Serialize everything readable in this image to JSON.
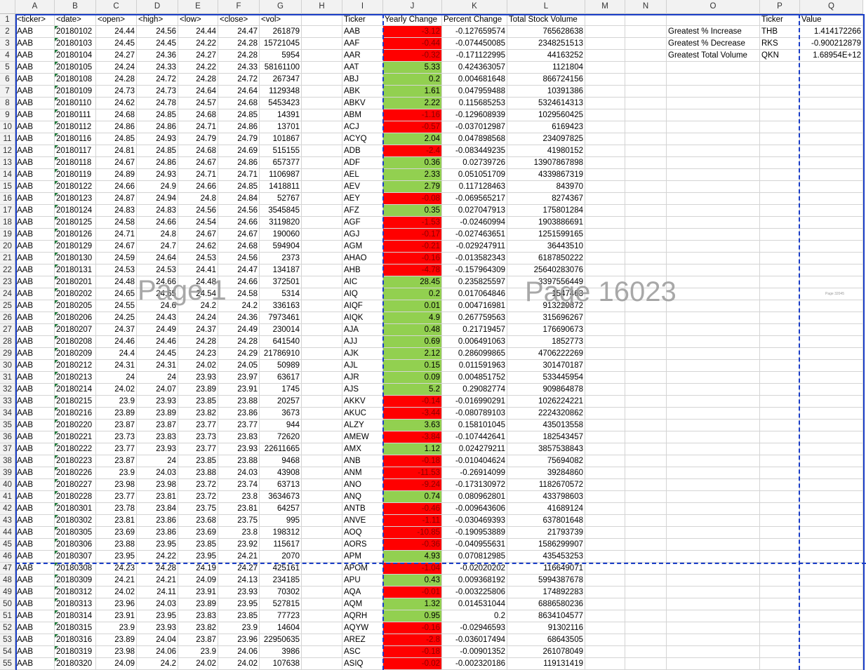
{
  "columns": [
    "A",
    "B",
    "C",
    "D",
    "E",
    "F",
    "G",
    "H",
    "I",
    "J",
    "K",
    "L",
    "M",
    "N",
    "O",
    "P",
    "Q"
  ],
  "header_row": {
    "A": "<ticker>",
    "B": "<date>",
    "C": "<open>",
    "D": "<high>",
    "E": "<low>",
    "F": "<close>",
    "G": "<vol>",
    "I": "Ticker",
    "J": "Yearly Change",
    "K": "Percent Change",
    "L": "Total Stock Volume",
    "P": "Ticker",
    "Q": "Value"
  },
  "raw_rows": [
    [
      "AAB",
      "20180102",
      "24.44",
      "24.56",
      "24.44",
      "24.47",
      "261879"
    ],
    [
      "AAB",
      "20180103",
      "24.45",
      "24.45",
      "24.22",
      "24.28",
      "15721045"
    ],
    [
      "AAB",
      "20180104",
      "24.27",
      "24.36",
      "24.27",
      "24.28",
      "5954"
    ],
    [
      "AAB",
      "20180105",
      "24.24",
      "24.33",
      "24.22",
      "24.33",
      "58161100"
    ],
    [
      "AAB",
      "20180108",
      "24.28",
      "24.72",
      "24.28",
      "24.72",
      "267347"
    ],
    [
      "AAB",
      "20180109",
      "24.73",
      "24.73",
      "24.64",
      "24.64",
      "1129348"
    ],
    [
      "AAB",
      "20180110",
      "24.62",
      "24.78",
      "24.57",
      "24.68",
      "5453423"
    ],
    [
      "AAB",
      "20180111",
      "24.68",
      "24.85",
      "24.68",
      "24.85",
      "14391"
    ],
    [
      "AAB",
      "20180112",
      "24.86",
      "24.86",
      "24.71",
      "24.86",
      "13701"
    ],
    [
      "AAB",
      "20180116",
      "24.85",
      "24.93",
      "24.79",
      "24.79",
      "101867"
    ],
    [
      "AAB",
      "20180117",
      "24.81",
      "24.85",
      "24.68",
      "24.69",
      "515155"
    ],
    [
      "AAB",
      "20180118",
      "24.67",
      "24.86",
      "24.67",
      "24.86",
      "657377"
    ],
    [
      "AAB",
      "20180119",
      "24.89",
      "24.93",
      "24.71",
      "24.71",
      "1106987"
    ],
    [
      "AAB",
      "20180122",
      "24.66",
      "24.9",
      "24.66",
      "24.85",
      "1418811"
    ],
    [
      "AAB",
      "20180123",
      "24.87",
      "24.94",
      "24.8",
      "24.84",
      "52767"
    ],
    [
      "AAB",
      "20180124",
      "24.83",
      "24.83",
      "24.56",
      "24.56",
      "3545845"
    ],
    [
      "AAB",
      "20180125",
      "24.58",
      "24.66",
      "24.54",
      "24.66",
      "3119820"
    ],
    [
      "AAB",
      "20180126",
      "24.71",
      "24.8",
      "24.67",
      "24.67",
      "190060"
    ],
    [
      "AAB",
      "20180129",
      "24.67",
      "24.7",
      "24.62",
      "24.68",
      "594904"
    ],
    [
      "AAB",
      "20180130",
      "24.59",
      "24.64",
      "24.53",
      "24.56",
      "2373"
    ],
    [
      "AAB",
      "20180131",
      "24.53",
      "24.53",
      "24.41",
      "24.47",
      "134187"
    ],
    [
      "AAB",
      "20180201",
      "24.48",
      "24.66",
      "24.48",
      "24.66",
      "372501"
    ],
    [
      "AAB",
      "20180202",
      "24.65",
      "24.65",
      "24.54",
      "24.58",
      "5314"
    ],
    [
      "AAB",
      "20180205",
      "24.55",
      "24.6",
      "24.2",
      "24.2",
      "336163"
    ],
    [
      "AAB",
      "20180206",
      "24.25",
      "24.43",
      "24.24",
      "24.36",
      "7973461"
    ],
    [
      "AAB",
      "20180207",
      "24.37",
      "24.49",
      "24.37",
      "24.49",
      "230014"
    ],
    [
      "AAB",
      "20180208",
      "24.46",
      "24.46",
      "24.28",
      "24.28",
      "641540"
    ],
    [
      "AAB",
      "20180209",
      "24.4",
      "24.45",
      "24.23",
      "24.29",
      "21786910"
    ],
    [
      "AAB",
      "20180212",
      "24.31",
      "24.31",
      "24.02",
      "24.05",
      "50989"
    ],
    [
      "AAB",
      "20180213",
      "24",
      "24",
      "23.93",
      "23.97",
      "63617"
    ],
    [
      "AAB",
      "20180214",
      "24.02",
      "24.07",
      "23.89",
      "23.91",
      "1745"
    ],
    [
      "AAB",
      "20180215",
      "23.9",
      "23.93",
      "23.85",
      "23.88",
      "20257"
    ],
    [
      "AAB",
      "20180216",
      "23.89",
      "23.89",
      "23.82",
      "23.86",
      "3673"
    ],
    [
      "AAB",
      "20180220",
      "23.87",
      "23.87",
      "23.77",
      "23.77",
      "944"
    ],
    [
      "AAB",
      "20180221",
      "23.73",
      "23.83",
      "23.73",
      "23.83",
      "72620"
    ],
    [
      "AAB",
      "20180222",
      "23.77",
      "23.93",
      "23.77",
      "23.93",
      "22611665"
    ],
    [
      "AAB",
      "20180223",
      "23.87",
      "24",
      "23.85",
      "23.88",
      "9468"
    ],
    [
      "AAB",
      "20180226",
      "23.9",
      "24.03",
      "23.88",
      "24.03",
      "43908"
    ],
    [
      "AAB",
      "20180227",
      "23.98",
      "23.98",
      "23.72",
      "23.74",
      "63713"
    ],
    [
      "AAB",
      "20180228",
      "23.77",
      "23.81",
      "23.72",
      "23.8",
      "3634673"
    ],
    [
      "AAB",
      "20180301",
      "23.78",
      "23.84",
      "23.75",
      "23.81",
      "64257"
    ],
    [
      "AAB",
      "20180302",
      "23.81",
      "23.86",
      "23.68",
      "23.75",
      "995"
    ],
    [
      "AAB",
      "20180305",
      "23.69",
      "23.86",
      "23.69",
      "23.8",
      "198312"
    ],
    [
      "AAB",
      "20180306",
      "23.88",
      "23.95",
      "23.85",
      "23.92",
      "115617"
    ],
    [
      "AAB",
      "20180307",
      "23.95",
      "24.22",
      "23.95",
      "24.21",
      "2070"
    ],
    [
      "AAB",
      "20180308",
      "24.23",
      "24.28",
      "24.19",
      "24.27",
      "425161"
    ],
    [
      "AAB",
      "20180309",
      "24.21",
      "24.21",
      "24.09",
      "24.13",
      "234185"
    ],
    [
      "AAB",
      "20180312",
      "24.02",
      "24.11",
      "23.91",
      "23.93",
      "70302"
    ],
    [
      "AAB",
      "20180313",
      "23.96",
      "24.03",
      "23.89",
      "23.95",
      "527815"
    ],
    [
      "AAB",
      "20180314",
      "23.91",
      "23.95",
      "23.83",
      "23.85",
      "77723"
    ],
    [
      "AAB",
      "20180315",
      "23.9",
      "23.93",
      "23.82",
      "23.9",
      "14604"
    ],
    [
      "AAB",
      "20180316",
      "23.89",
      "24.04",
      "23.87",
      "23.96",
      "22950635"
    ],
    [
      "AAB",
      "20180319",
      "23.98",
      "24.06",
      "23.9",
      "24.06",
      "3986"
    ],
    [
      "AAB",
      "20180320",
      "24.09",
      "24.2",
      "24.02",
      "24.02",
      "107638"
    ]
  ],
  "summary_rows": [
    [
      "AAB",
      "-3.12",
      "-0.127659574",
      "765628638"
    ],
    [
      "AAF",
      "-0.44",
      "-0.074450085",
      "2348251513"
    ],
    [
      "AAR",
      "-0.32",
      "-0.171122995",
      "44163252"
    ],
    [
      "AAT",
      "5.33",
      "0.424363057",
      "1121804"
    ],
    [
      "ABJ",
      "0.2",
      "0.004681648",
      "866724156"
    ],
    [
      "ABK",
      "1.61",
      "0.047959488",
      "10391386"
    ],
    [
      "ABKV",
      "2.22",
      "0.115685253",
      "5324614313"
    ],
    [
      "ABM",
      "-1.16",
      "-0.129608939",
      "1029560425"
    ],
    [
      "ACJ",
      "-0.57",
      "-0.037012987",
      "6169423"
    ],
    [
      "ACYQ",
      "2.04",
      "0.047898568",
      "234097825"
    ],
    [
      "ADB",
      "-2.4",
      "-0.083449235",
      "41980152"
    ],
    [
      "ADF",
      "0.36",
      "0.02739726",
      "13907867898"
    ],
    [
      "AEL",
      "2.33",
      "0.051051709",
      "4339867319"
    ],
    [
      "AEV",
      "2.79",
      "0.117128463",
      "843970"
    ],
    [
      "AEY",
      "-0.08",
      "-0.069565217",
      "8274367"
    ],
    [
      "AFZ",
      "0.35",
      "0.027047913",
      "175801284"
    ],
    [
      "AGF",
      "-1.53",
      "-0.02460994",
      "1903886691"
    ],
    [
      "AGJ",
      "-0.17",
      "-0.027463651",
      "1251599165"
    ],
    [
      "AGM",
      "-0.21",
      "-0.029247911",
      "36443510"
    ],
    [
      "AHAO",
      "-0.16",
      "-0.013582343",
      "6187850222"
    ],
    [
      "AHB",
      "-4.78",
      "-0.157964309",
      "25640283076"
    ],
    [
      "AIC",
      "28.45",
      "0.235825597",
      "3397556449"
    ],
    [
      "AIQ",
      "0.2",
      "0.017064846",
      "1547463"
    ],
    [
      "AIQF",
      "0.01",
      "0.004716981",
      "913229872"
    ],
    [
      "AIQK",
      "4.9",
      "0.267759563",
      "315696267"
    ],
    [
      "AJA",
      "0.48",
      "0.21719457",
      "176690673"
    ],
    [
      "AJJ",
      "0.69",
      "0.006491063",
      "1852773"
    ],
    [
      "AJK",
      "2.12",
      "0.286099865",
      "4706222269"
    ],
    [
      "AJL",
      "0.15",
      "0.011591963",
      "301470187"
    ],
    [
      "AJR",
      "0.09",
      "0.004851752",
      "533445954"
    ],
    [
      "AJS",
      "5.2",
      "0.29082774",
      "909864878"
    ],
    [
      "AKKV",
      "-0.14",
      "-0.016990291",
      "1026224221"
    ],
    [
      "AKUC",
      "-3.44",
      "-0.080789103",
      "2224320862"
    ],
    [
      "ALZY",
      "3.63",
      "0.158101045",
      "435013558"
    ],
    [
      "AMEW",
      "-3.84",
      "-0.107442641",
      "182543457"
    ],
    [
      "AMX",
      "1.12",
      "0.024279211",
      "3857538843"
    ],
    [
      "ANB",
      "-0.18",
      "-0.010404624",
      "75694082"
    ],
    [
      "ANM",
      "-11.53",
      "-0.26914099",
      "39284860"
    ],
    [
      "ANO",
      "-9.24",
      "-0.173130972",
      "1182670572"
    ],
    [
      "ANQ",
      "0.74",
      "0.080962801",
      "433798603"
    ],
    [
      "ANTB",
      "-0.46",
      "-0.009643606",
      "41689124"
    ],
    [
      "ANVE",
      "-1.11",
      "-0.030469393",
      "637801648"
    ],
    [
      "AOQ",
      "-10.85",
      "-0.190953889",
      "21793739"
    ],
    [
      "AORS",
      "-0.36",
      "-0.040955631",
      "1586299907"
    ],
    [
      "APM",
      "4.93",
      "0.070812985",
      "435453253"
    ],
    [
      "APOM",
      "-1.04",
      "-0.02020202",
      "116649071"
    ],
    [
      "APU",
      "0.43",
      "0.009368192",
      "5994387678"
    ],
    [
      "AQA",
      "-0.01",
      "-0.003225806",
      "174892283"
    ],
    [
      "AQM",
      "1.32",
      "0.014531044",
      "6886580236"
    ],
    [
      "AQRH",
      "0.95",
      "0.2",
      "8634104577"
    ],
    [
      "AQYW",
      "-0.16",
      "-0.02946593",
      "91302116"
    ],
    [
      "AREZ",
      "-2.8",
      "-0.036017494",
      "68643505"
    ],
    [
      "ASC",
      "-0.18",
      "-0.00901352",
      "261078049"
    ],
    [
      "ASIQ",
      "-0.02",
      "-0.002320186",
      "119131419"
    ]
  ],
  "greatest": [
    {
      "label": "Greatest % Increase",
      "ticker": "THB",
      "value": "1.414172266"
    },
    {
      "label": "Greatest % Decrease",
      "ticker": "RKS",
      "value": "-0.900212879"
    },
    {
      "label": "Greatest Total Volume",
      "ticker": "QKN",
      "value": "1.68954E+12"
    }
  ],
  "watermarks": {
    "page1": "Page 1",
    "page16023": "Page 16023",
    "tiny": "Page 32045"
  },
  "colors": {
    "positive": "#92d050",
    "negative": "#ff0000",
    "page_break": "#1a3ec8"
  }
}
